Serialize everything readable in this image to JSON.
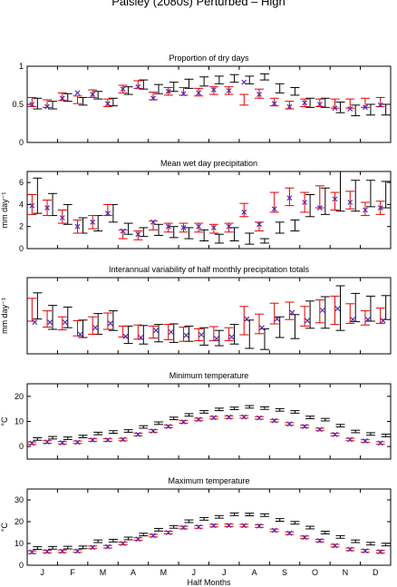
{
  "figure": {
    "title": "Paisley (2080s) Perturbed – High",
    "xlabel": "Half Months",
    "months": [
      "J",
      "F",
      "M",
      "A",
      "M",
      "J",
      "J",
      "A",
      "S",
      "O",
      "N",
      "D"
    ]
  },
  "colors": {
    "observed": "#000000",
    "model": "#e00000",
    "marker": "#5a2ab4"
  },
  "chart_data": [
    {
      "type": "errorbar",
      "title": "Proportion of dry days",
      "ylabel": "",
      "ylim": [
        0,
        1
      ],
      "yticks": [
        "0",
        "0.5",
        "1"
      ],
      "yticks_values": [
        0,
        0.5,
        1
      ],
      "series": [
        {
          "name": "",
          "color": "#000000",
          "center": [
            0.51,
            0.49,
            0.59,
            0.54,
            0.62,
            0.53,
            0.68,
            0.76,
            0.7,
            0.73,
            0.77,
            0.8,
            0.82,
            0.84,
            0.82,
            0.86,
            0.71,
            0.67,
            0.52,
            0.52,
            0.46,
            0.42,
            0.43,
            0.43
          ],
          "halfwidth": [
            0.07,
            0.05,
            0.05,
            0.05,
            0.05,
            0.05,
            0.05,
            0.06,
            0.06,
            0.06,
            0.06,
            0.06,
            0.05,
            0.05,
            0.05,
            0.04,
            0.06,
            0.05,
            0.06,
            0.06,
            0.07,
            0.07,
            0.07,
            0.07
          ]
        },
        {
          "name": "",
          "color": "#e00000",
          "center": [
            0.53,
            0.51,
            0.6,
            0.56,
            0.64,
            0.52,
            0.7,
            0.76,
            0.61,
            0.67,
            0.67,
            0.66,
            0.68,
            0.68,
            0.56,
            0.64,
            0.53,
            0.49,
            0.52,
            0.52,
            0.51,
            0.51,
            0.52,
            0.53
          ],
          "halfwidth": [
            0.06,
            0.05,
            0.05,
            0.05,
            0.05,
            0.05,
            0.05,
            0.05,
            0.05,
            0.05,
            0.05,
            0.05,
            0.05,
            0.05,
            0.07,
            0.06,
            0.05,
            0.05,
            0.05,
            0.05,
            0.06,
            0.06,
            0.06,
            0.06
          ],
          "markers": [
            0.5,
            0.47,
            0.58,
            0.65,
            0.63,
            0.51,
            0.7,
            0.73,
            0.58,
            0.67,
            0.64,
            0.65,
            0.69,
            0.68,
            0.79,
            0.63,
            0.51,
            0.47,
            0.52,
            0.5,
            0.45,
            0.44,
            0.46,
            0.49
          ]
        }
      ]
    },
    {
      "type": "errorbar",
      "title": "Mean wet day precipitation",
      "ylabel": "mm day⁻¹",
      "ylim": [
        0,
        7
      ],
      "yticks": [
        "0",
        "2",
        "4",
        "6"
      ],
      "yticks_values": [
        0,
        2,
        4,
        6
      ],
      "series": [
        {
          "name": "",
          "color": "#000000",
          "center": [
            4.8,
            4.0,
            3.1,
            2.1,
            2.3,
            3.2,
            1.8,
            1.5,
            1.7,
            1.5,
            1.4,
            1.2,
            0.9,
            1.3,
            0.9,
            0.7,
            1.9,
            2.1,
            3.9,
            4.3,
            5.2,
            4.8,
            5.0,
            4.9
          ],
          "halfwidth": [
            1.6,
            1.0,
            0.9,
            0.7,
            0.7,
            0.8,
            0.5,
            0.4,
            0.5,
            0.5,
            0.5,
            0.5,
            0.4,
            0.6,
            0.5,
            0.2,
            0.5,
            0.5,
            1.0,
            1.2,
            1.8,
            1.4,
            1.2,
            1.2
          ]
        },
        {
          "name": "",
          "color": "#e00000",
          "center": [
            4.0,
            3.7,
            2.9,
            2.0,
            2.4,
            3.5,
            1.3,
            1.2,
            2.1,
            1.9,
            1.9,
            1.9,
            1.8,
            1.9,
            3.5,
            2.0,
            4.2,
            4.7,
            4.2,
            4.7,
            4.3,
            4.4,
            3.6,
            3.7
          ],
          "halfwidth": [
            0.9,
            0.7,
            0.6,
            0.6,
            0.6,
            0.5,
            0.4,
            0.4,
            0.4,
            0.4,
            0.4,
            0.4,
            0.4,
            0.4,
            0.6,
            0.4,
            0.9,
            0.8,
            0.9,
            1.0,
            0.8,
            0.8,
            0.6,
            0.6
          ],
          "markers": [
            3.9,
            3.7,
            2.8,
            2.0,
            2.4,
            3.2,
            1.6,
            1.3,
            2.4,
            2.0,
            1.9,
            2.0,
            1.9,
            2.0,
            3.3,
            2.2,
            3.6,
            4.6,
            4.2,
            3.7,
            4.5,
            4.2,
            3.5,
            3.7
          ]
        }
      ]
    },
    {
      "type": "errorbar",
      "title": "Interannual variability of half monthly precipitation totals",
      "ylabel": "mm day⁻¹",
      "ylim": [
        0,
        14
      ],
      "yticks": [],
      "yticks_values": [],
      "series": [
        {
          "name": "",
          "color": "#000000",
          "center": [
            8.8,
            6.7,
            6.7,
            4.6,
            5.5,
            6.1,
            3.5,
            3.5,
            3.8,
            3.8,
            3.7,
            3.2,
            2.9,
            3.6,
            3.6,
            2.7,
            4.9,
            5.0,
            7.2,
            7.6,
            8.4,
            8.5,
            8.3,
            8.5
          ],
          "halfwidth": [
            2.4,
            2.2,
            1.9,
            1.6,
            1.9,
            1.8,
            1.6,
            1.7,
            1.6,
            1.7,
            1.4,
            1.6,
            1.4,
            1.8,
            2.6,
            1.9,
            1.9,
            2.2,
            2.5,
            2.9,
            4.1,
            2.6,
            2.3,
            2.2
          ]
        },
        {
          "name": "",
          "color": "#e00000",
          "center": [
            8.1,
            6.4,
            5.6,
            4.7,
            5.2,
            6.0,
            4.1,
            4.0,
            4.0,
            4.0,
            3.6,
            3.5,
            3.7,
            3.6,
            6.1,
            5.5,
            7.4,
            7.9,
            6.9,
            7.8,
            8.0,
            7.4,
            6.6,
            7.0
          ],
          "halfwidth": [
            2.1,
            1.5,
            1.2,
            1.4,
            1.6,
            1.5,
            1.0,
            1.3,
            1.1,
            1.4,
            1.3,
            1.1,
            1.3,
            1.2,
            2.6,
            1.8,
            1.9,
            1.6,
            1.8,
            2.1,
            2.6,
            1.8,
            1.3,
            1.4
          ]
        },
        {
          "name": "",
          "color": "#5a2ab4",
          "center": [],
          "halfwidth": [],
          "markers": [
            5.8,
            5.8,
            5.8,
            3.6,
            4.8,
            5.6,
            3.2,
            3.0,
            4.3,
            4.0,
            3.4,
            3.5,
            2.8,
            3.1,
            6.4,
            4.8,
            6.4,
            7.6,
            6.1,
            8.0,
            8.3,
            6.3,
            6.3,
            6.1
          ]
        }
      ]
    },
    {
      "type": "errorbar",
      "title": "Minimum temperature",
      "ylabel": "°C",
      "ylim": [
        -5,
        25
      ],
      "yticks": [
        "0",
        "10",
        "20"
      ],
      "yticks_values": [
        0,
        10,
        20
      ],
      "series": [
        {
          "name": "",
          "color": "#000000",
          "center": [
            3.0,
            3.5,
            3.3,
            4.0,
            5.2,
            5.8,
            6.2,
            7.8,
            9.3,
            11.2,
            12.6,
            13.8,
            14.8,
            15.2,
            15.8,
            15.3,
            14.6,
            13.8,
            11.6,
            10.7,
            8.3,
            6.0,
            5.0,
            4.4
          ],
          "halfwidth": [
            0.5,
            0.5,
            0.5,
            0.5,
            0.5,
            0.5,
            0.5,
            0.5,
            0.5,
            0.5,
            0.5,
            0.5,
            0.5,
            0.5,
            0.5,
            0.5,
            0.5,
            0.5,
            0.5,
            0.5,
            0.5,
            0.5,
            0.5,
            0.5
          ]
        },
        {
          "name": "",
          "color": "#e00000",
          "center": [
            1.3,
            1.8,
            1.5,
            1.7,
            2.6,
            2.6,
            2.8,
            4.8,
            6.2,
            8.0,
            9.8,
            10.8,
            11.5,
            11.7,
            11.8,
            11.4,
            10.3,
            9.0,
            8.0,
            6.8,
            4.8,
            2.8,
            2.2,
            1.4
          ],
          "halfwidth": [
            0.5,
            0.5,
            0.5,
            0.5,
            0.5,
            0.5,
            0.5,
            0.5,
            0.5,
            0.5,
            0.5,
            0.5,
            0.5,
            0.5,
            0.5,
            0.5,
            0.5,
            0.5,
            0.5,
            0.5,
            0.5,
            0.5,
            0.5,
            0.5
          ],
          "markers": [
            1.3,
            1.8,
            1.5,
            1.7,
            2.6,
            2.6,
            2.8,
            4.8,
            6.2,
            8.0,
            9.8,
            10.8,
            11.5,
            11.7,
            11.8,
            11.4,
            10.3,
            9.0,
            8.0,
            6.8,
            4.8,
            2.8,
            2.2,
            1.4
          ]
        }
      ]
    },
    {
      "type": "errorbar",
      "title": "Maximum temperature",
      "ylabel": "°C",
      "ylim": [
        0,
        35
      ],
      "yticks": [
        "0",
        "10",
        "20",
        "30"
      ],
      "yticks_values": [
        0,
        10,
        20,
        30
      ],
      "series": [
        {
          "name": "",
          "color": "#000000",
          "center": [
            7.9,
            8.0,
            8.1,
            8.2,
            11.0,
            11.3,
            12.3,
            14.1,
            16.3,
            17.6,
            20.2,
            21.3,
            22.2,
            23.4,
            23.3,
            23.0,
            20.8,
            19.5,
            17.3,
            15.0,
            13.0,
            11.0,
            9.9,
            9.5
          ],
          "halfwidth": [
            0.6,
            0.6,
            0.6,
            0.6,
            0.6,
            0.6,
            0.6,
            0.6,
            0.6,
            0.6,
            0.6,
            0.6,
            0.6,
            0.6,
            0.6,
            0.6,
            0.6,
            0.6,
            0.6,
            0.6,
            0.6,
            0.6,
            0.6,
            0.6
          ]
        },
        {
          "name": "",
          "color": "#e00000",
          "center": [
            6.0,
            6.3,
            6.4,
            6.5,
            8.2,
            8.5,
            10.0,
            12.0,
            13.6,
            15.0,
            17.3,
            17.6,
            18.2,
            18.3,
            18.2,
            18.0,
            16.0,
            14.7,
            12.8,
            11.3,
            9.0,
            7.3,
            6.6,
            6.2
          ],
          "halfwidth": [
            0.6,
            0.6,
            0.6,
            0.6,
            0.6,
            0.6,
            0.6,
            0.6,
            0.6,
            0.6,
            0.6,
            0.6,
            0.6,
            0.6,
            0.6,
            0.6,
            0.6,
            0.6,
            0.6,
            0.6,
            0.6,
            0.6,
            0.6,
            0.6
          ],
          "markers": [
            6.0,
            6.3,
            6.4,
            6.5,
            8.2,
            8.5,
            10.0,
            12.0,
            13.6,
            15.0,
            17.3,
            17.6,
            18.2,
            18.3,
            18.2,
            18.0,
            16.0,
            14.7,
            12.8,
            11.3,
            9.0,
            7.3,
            6.6,
            6.2
          ]
        }
      ]
    }
  ]
}
